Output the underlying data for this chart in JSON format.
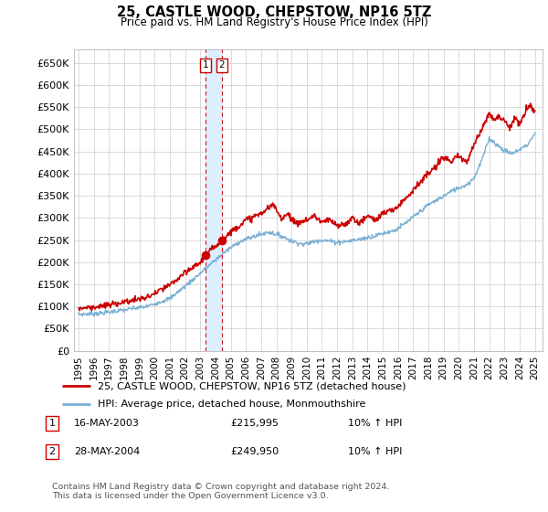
{
  "title": "25, CASTLE WOOD, CHEPSTOW, NP16 5TZ",
  "subtitle": "Price paid vs. HM Land Registry's House Price Index (HPI)",
  "ylim": [
    0,
    680000
  ],
  "yticks": [
    0,
    50000,
    100000,
    150000,
    200000,
    250000,
    300000,
    350000,
    400000,
    450000,
    500000,
    550000,
    600000,
    650000
  ],
  "xlim_start": 1994.7,
  "xlim_end": 2025.5,
  "grid_color": "#cccccc",
  "plot_bg": "#ffffff",
  "fig_bg": "#ffffff",
  "sale_color": "#cc0000",
  "hpi_color": "#7ab0d4",
  "highlight_color": "#ddeeff",
  "dashed_line_color": "#cc0000",
  "marker1_x": 2003.37,
  "marker1_y": 215995,
  "marker2_x": 2004.41,
  "marker2_y": 249950,
  "sale_label": "25, CASTLE WOOD, CHEPSTOW, NP16 5TZ (detached house)",
  "hpi_label": "HPI: Average price, detached house, Monmouthshire",
  "table_entries": [
    {
      "num": "1",
      "date": "16-MAY-2003",
      "price": "£215,995",
      "note": "10% ↑ HPI"
    },
    {
      "num": "2",
      "date": "28-MAY-2004",
      "price": "£249,950",
      "note": "10% ↑ HPI"
    }
  ],
  "footer": "Contains HM Land Registry data © Crown copyright and database right 2024.\nThis data is licensed under the Open Government Licence v3.0.",
  "xtick_years": [
    1995,
    1996,
    1997,
    1998,
    1999,
    2000,
    2001,
    2002,
    2003,
    2004,
    2005,
    2006,
    2007,
    2008,
    2009,
    2010,
    2011,
    2012,
    2013,
    2014,
    2015,
    2016,
    2017,
    2018,
    2019,
    2020,
    2021,
    2022,
    2023,
    2024,
    2025
  ],
  "hpi_knots_x": [
    1995.0,
    1996.5,
    1998.0,
    1999.5,
    2001.0,
    2002.5,
    2003.5,
    2004.5,
    2005.5,
    2006.5,
    2007.5,
    2008.3,
    2009.0,
    2009.8,
    2010.8,
    2011.5,
    2012.0,
    2012.8,
    2013.5,
    2014.3,
    2015.0,
    2015.8,
    2016.5,
    2017.3,
    2018.0,
    2018.8,
    2019.5,
    2020.0,
    2020.5,
    2021.0,
    2021.5,
    2022.0,
    2022.5,
    2023.0,
    2023.5,
    2024.0,
    2024.5,
    2025.0
  ],
  "hpi_knots_y": [
    82000,
    85000,
    92000,
    100000,
    118000,
    160000,
    190000,
    220000,
    245000,
    258000,
    268000,
    260000,
    248000,
    240000,
    250000,
    248000,
    245000,
    248000,
    252000,
    258000,
    265000,
    272000,
    288000,
    310000,
    330000,
    345000,
    360000,
    368000,
    375000,
    390000,
    430000,
    480000,
    465000,
    452000,
    445000,
    455000,
    465000,
    490000
  ],
  "sale_knots_x": [
    1995.0,
    1996.5,
    1998.0,
    1999.5,
    2001.0,
    2002.0,
    2003.0,
    2003.37,
    2004.41,
    2005.0,
    2006.0,
    2007.0,
    2007.8,
    2008.3,
    2008.8,
    2009.3,
    2009.5,
    2010.0,
    2010.5,
    2011.0,
    2011.5,
    2012.0,
    2012.5,
    2013.0,
    2013.5,
    2014.0,
    2014.5,
    2015.0,
    2015.8,
    2016.5,
    2017.3,
    2018.0,
    2018.5,
    2019.0,
    2019.5,
    2020.0,
    2020.5,
    2021.0,
    2021.5,
    2022.0,
    2022.3,
    2022.6,
    2023.0,
    2023.3,
    2023.7,
    2024.0,
    2024.3,
    2024.7,
    2025.0
  ],
  "sale_knots_y": [
    96000,
    100000,
    110000,
    120000,
    148000,
    175000,
    200000,
    215995,
    249950,
    268000,
    295000,
    310000,
    330000,
    300000,
    310000,
    285000,
    290000,
    295000,
    305000,
    290000,
    295000,
    282000,
    285000,
    300000,
    288000,
    305000,
    295000,
    310000,
    320000,
    345000,
    375000,
    400000,
    415000,
    440000,
    425000,
    440000,
    425000,
    465000,
    500000,
    540000,
    520000,
    530000,
    520000,
    505000,
    525000,
    510000,
    535000,
    555000,
    540000
  ]
}
